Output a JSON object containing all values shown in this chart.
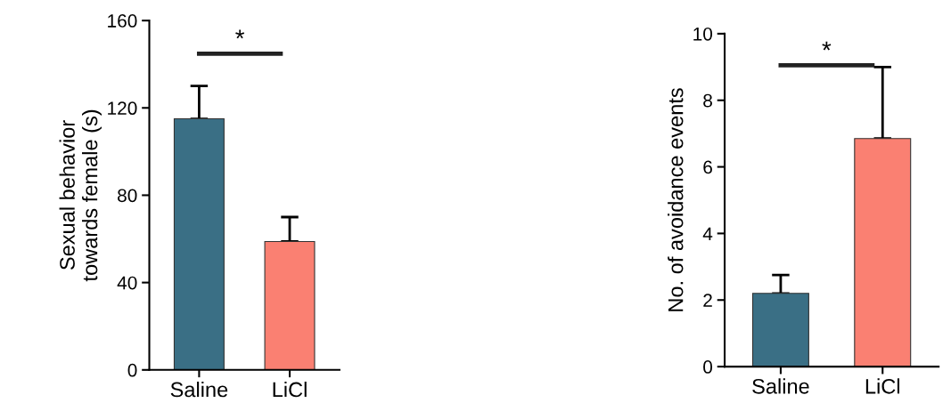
{
  "chart_data": [
    {
      "type": "bar",
      "categories": [
        "Saline",
        "LiCl"
      ],
      "values": [
        115,
        58.8
      ],
      "colors": [
        "#3a6f85",
        "#fa8072"
      ],
      "errors": [
        [
          115,
          130
        ],
        [
          58.8,
          70
        ]
      ],
      "ylabel": "Sexual behavior\ntowards female (s)",
      "ylim": [
        0,
        160
      ],
      "yticks": [
        0,
        40,
        80,
        120,
        160
      ],
      "grid": false,
      "annotations": [
        "*"
      ]
    },
    {
      "type": "bar",
      "categories": [
        "Saline",
        "LiCl"
      ],
      "values": [
        2.2,
        6.85
      ],
      "colors": [
        "#3a6f85",
        "#fa8072"
      ],
      "errors": [
        [
          2.2,
          2.75
        ],
        [
          6.85,
          9.0
        ]
      ],
      "ylabel": "No. of avoidance events",
      "ylim": [
        0,
        10
      ],
      "yticks": [
        0,
        2,
        4,
        6,
        8,
        10
      ],
      "grid": false,
      "annotations": [
        "*"
      ]
    }
  ]
}
